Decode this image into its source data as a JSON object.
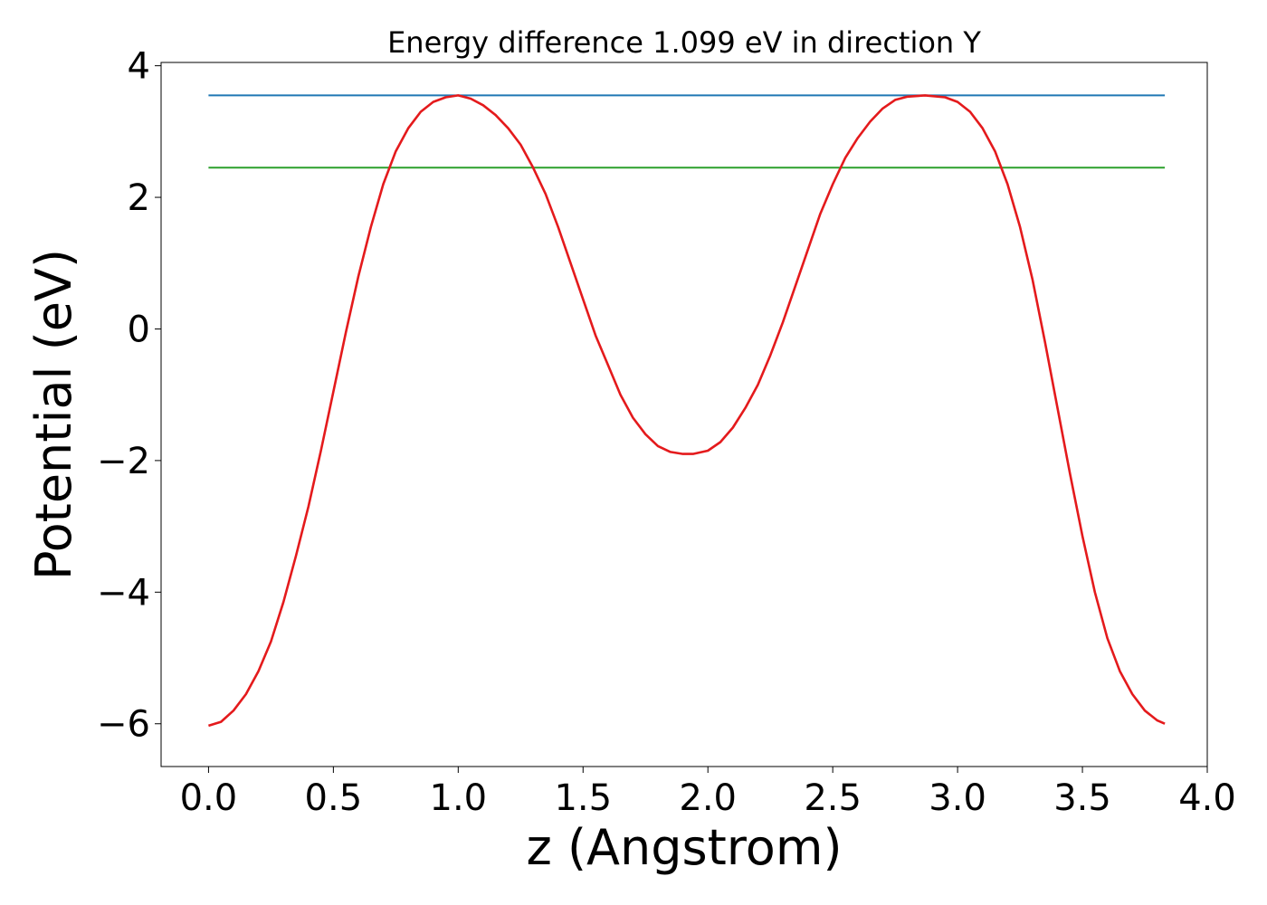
{
  "chart_data": {
    "type": "line",
    "title": "Energy difference 1.099 eV in direction Y",
    "xlabel": "z (Angstrom)",
    "ylabel": "Potential (eV)",
    "xlim": [
      -0.19,
      4.0
    ],
    "ylim": [
      -6.65,
      4.05
    ],
    "xticks": [
      0.0,
      0.5,
      1.0,
      1.5,
      2.0,
      2.5,
      3.0,
      3.5,
      4.0
    ],
    "xtick_labels": [
      "0.0",
      "0.5",
      "1.0",
      "1.5",
      "2.0",
      "2.5",
      "3.0",
      "3.5",
      "4.0"
    ],
    "yticks": [
      -6,
      -4,
      -2,
      0,
      2,
      4
    ],
    "ytick_labels": [
      "−6",
      "−4",
      "−2",
      "0",
      "2",
      "4"
    ],
    "grid": false,
    "series": [
      {
        "color": "#1f77b4",
        "x": [
          0.0,
          3.83
        ],
        "y": [
          3.55,
          3.55
        ]
      },
      {
        "color": "#2ca02c",
        "x": [
          0.0,
          3.83
        ],
        "y": [
          2.45,
          2.45
        ]
      },
      {
        "color": "#e41a1c",
        "x": [
          0.0,
          0.05,
          0.1,
          0.15,
          0.2,
          0.25,
          0.3,
          0.35,
          0.4,
          0.45,
          0.5,
          0.55,
          0.6,
          0.65,
          0.7,
          0.75,
          0.8,
          0.85,
          0.9,
          0.95,
          1.0,
          1.05,
          1.1,
          1.15,
          1.2,
          1.25,
          1.3,
          1.35,
          1.4,
          1.45,
          1.5,
          1.55,
          1.6,
          1.65,
          1.7,
          1.75,
          1.8,
          1.85,
          1.9,
          1.94,
          2.0,
          2.05,
          2.1,
          2.15,
          2.2,
          2.25,
          2.3,
          2.35,
          2.4,
          2.45,
          2.5,
          2.55,
          2.6,
          2.65,
          2.7,
          2.75,
          2.8,
          2.87,
          2.95,
          3.0,
          3.05,
          3.1,
          3.15,
          3.2,
          3.25,
          3.3,
          3.35,
          3.4,
          3.45,
          3.5,
          3.55,
          3.6,
          3.65,
          3.7,
          3.75,
          3.8,
          3.83
        ],
        "y": [
          -6.03,
          -5.97,
          -5.8,
          -5.55,
          -5.2,
          -4.75,
          -4.15,
          -3.45,
          -2.7,
          -1.85,
          -0.95,
          -0.05,
          0.8,
          1.55,
          2.2,
          2.7,
          3.05,
          3.3,
          3.45,
          3.52,
          3.55,
          3.5,
          3.4,
          3.25,
          3.05,
          2.8,
          2.45,
          2.05,
          1.55,
          1.0,
          0.45,
          -0.1,
          -0.55,
          -1.0,
          -1.35,
          -1.6,
          -1.78,
          -1.87,
          -1.9,
          -1.9,
          -1.85,
          -1.72,
          -1.5,
          -1.2,
          -0.85,
          -0.4,
          0.1,
          0.65,
          1.2,
          1.75,
          2.2,
          2.6,
          2.9,
          3.15,
          3.35,
          3.48,
          3.53,
          3.55,
          3.52,
          3.45,
          3.3,
          3.05,
          2.7,
          2.2,
          1.55,
          0.75,
          -0.2,
          -1.2,
          -2.2,
          -3.15,
          -4.0,
          -4.7,
          -5.2,
          -5.55,
          -5.8,
          -5.95,
          -6.0
        ]
      }
    ]
  }
}
